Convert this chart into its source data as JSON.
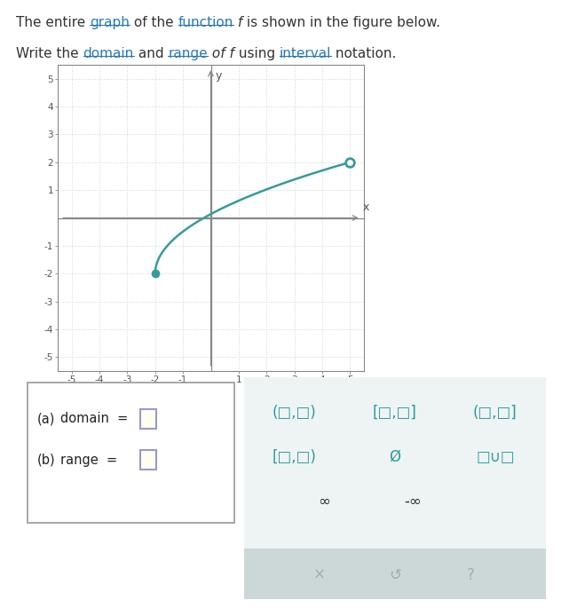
{
  "graph": {
    "xlim": [
      -5.5,
      5.5
    ],
    "ylim": [
      -5.5,
      5.5
    ],
    "xticks": [
      -5,
      -4,
      -3,
      -2,
      -1,
      1,
      2,
      3,
      4,
      5
    ],
    "yticks": [
      -5,
      -4,
      -3,
      -2,
      -1,
      1,
      2,
      3,
      4,
      5
    ],
    "curve_color": "#3a9a9a",
    "curve_linewidth": 1.8,
    "start_x": -2,
    "start_y": -2,
    "end_x": 5,
    "end_y": 2,
    "grid_color": "#c8dada",
    "background_color": "#ffffff"
  },
  "bottom_left": {
    "box_color": "#fffff0",
    "box_border": "#9999cc",
    "font_color": "#222222",
    "font_size": 10.5
  },
  "bottom_right": {
    "teal_color": "#2a9a9a",
    "gray_color": "#aaaaaa",
    "box_bg": "#eef4f4",
    "bottom_bg": "#ccd8d8",
    "font_size": 12,
    "border_color": "#bbcccc"
  }
}
